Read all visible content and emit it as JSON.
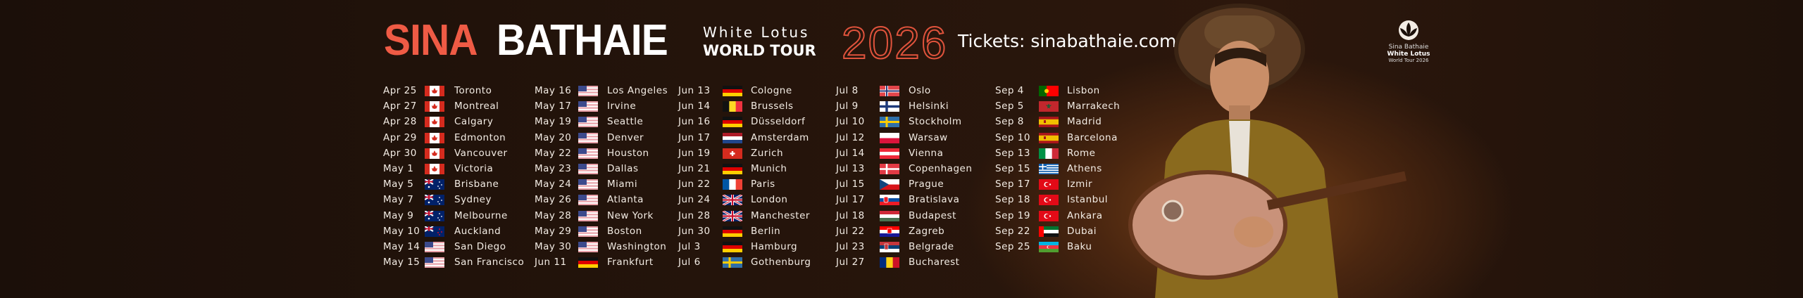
{
  "header": {
    "artist_first": "SINA",
    "artist_last": "BATHAIE",
    "tour_subtitle": "White Lotus",
    "tour_title": "WORLD TOUR",
    "year": "2026",
    "tickets": "Tickets: sinabathaie.com"
  },
  "logo": {
    "line1": "Sina Bathaie",
    "line2": "White Lotus",
    "line3": "World Tour 2026"
  },
  "colors": {
    "accent": "#ef5b45",
    "background": "#1f120b"
  },
  "columns": [
    [
      {
        "date": "Apr 25",
        "flag": "ca",
        "city": "Toronto"
      },
      {
        "date": "Apr 27",
        "flag": "ca",
        "city": "Montreal"
      },
      {
        "date": "Apr 28",
        "flag": "ca",
        "city": "Calgary"
      },
      {
        "date": "Apr 29",
        "flag": "ca",
        "city": "Edmonton"
      },
      {
        "date": "Apr 30",
        "flag": "ca",
        "city": "Vancouver"
      },
      {
        "date": "May 1",
        "flag": "ca",
        "city": "Victoria"
      },
      {
        "date": "May 5",
        "flag": "au",
        "city": "Brisbane"
      },
      {
        "date": "May 7",
        "flag": "au",
        "city": "Sydney"
      },
      {
        "date": "May 9",
        "flag": "au",
        "city": "Melbourne"
      },
      {
        "date": "May 10",
        "flag": "nz",
        "city": "Auckland"
      },
      {
        "date": "May 14",
        "flag": "us",
        "city": "San Diego"
      },
      {
        "date": "May 15",
        "flag": "us",
        "city": "San Francisco"
      }
    ],
    [
      {
        "date": "May 16",
        "flag": "us",
        "city": "Los Angeles"
      },
      {
        "date": "May 17",
        "flag": "us",
        "city": "Irvine"
      },
      {
        "date": "May 19",
        "flag": "us",
        "city": "Seattle"
      },
      {
        "date": "May 20",
        "flag": "us",
        "city": "Denver"
      },
      {
        "date": "May 22",
        "flag": "us",
        "city": "Houston"
      },
      {
        "date": "May 23",
        "flag": "us",
        "city": "Dallas"
      },
      {
        "date": "May 24",
        "flag": "us",
        "city": "Miami"
      },
      {
        "date": "May 26",
        "flag": "us",
        "city": "Atlanta"
      },
      {
        "date": "May 28",
        "flag": "us",
        "city": "New York"
      },
      {
        "date": "May 29",
        "flag": "us",
        "city": "Boston"
      },
      {
        "date": "May 30",
        "flag": "us",
        "city": "Washington"
      },
      {
        "date": "Jun 11",
        "flag": "de",
        "city": "Frankfurt"
      }
    ],
    [
      {
        "date": "Jun 13",
        "flag": "de",
        "city": "Cologne"
      },
      {
        "date": "Jun 14",
        "flag": "be",
        "city": "Brussels"
      },
      {
        "date": "Jun 16",
        "flag": "de",
        "city": "Düsseldorf"
      },
      {
        "date": "Jun 17",
        "flag": "nl",
        "city": "Amsterdam"
      },
      {
        "date": "Jun 19",
        "flag": "ch",
        "city": "Zurich"
      },
      {
        "date": "Jun 21",
        "flag": "de",
        "city": "Munich"
      },
      {
        "date": "Jun 22",
        "flag": "fr",
        "city": "Paris"
      },
      {
        "date": "Jun 24",
        "flag": "gb",
        "city": "London"
      },
      {
        "date": "Jun 28",
        "flag": "gb",
        "city": "Manchester"
      },
      {
        "date": "Jun 30",
        "flag": "de",
        "city": "Berlin"
      },
      {
        "date": "Jul 3",
        "flag": "de",
        "city": "Hamburg"
      },
      {
        "date": "Jul 6",
        "flag": "se",
        "city": "Gothenburg"
      }
    ],
    [
      {
        "date": "Jul 8",
        "flag": "no",
        "city": "Oslo"
      },
      {
        "date": "Jul 9",
        "flag": "fi",
        "city": "Helsinki"
      },
      {
        "date": "Jul 10",
        "flag": "se",
        "city": "Stockholm"
      },
      {
        "date": "Jul 12",
        "flag": "pl",
        "city": "Warsaw"
      },
      {
        "date": "Jul 14",
        "flag": "at",
        "city": "Vienna"
      },
      {
        "date": "Jul 13",
        "flag": "dk",
        "city": "Copenhagen"
      },
      {
        "date": "Jul 15",
        "flag": "cz",
        "city": "Prague"
      },
      {
        "date": "Jul 17",
        "flag": "sk",
        "city": "Bratislava"
      },
      {
        "date": "Jul 18",
        "flag": "hu",
        "city": "Budapest"
      },
      {
        "date": "Jul 22",
        "flag": "hr",
        "city": "Zagreb"
      },
      {
        "date": "Jul 23",
        "flag": "rs",
        "city": "Belgrade"
      },
      {
        "date": "Jul 27",
        "flag": "ro",
        "city": "Bucharest"
      }
    ],
    [
      {
        "date": "Sep 4",
        "flag": "pt",
        "city": "Lisbon"
      },
      {
        "date": "Sep 5",
        "flag": "ma",
        "city": "Marrakech"
      },
      {
        "date": "Sep 8",
        "flag": "es",
        "city": "Madrid"
      },
      {
        "date": "Sep 10",
        "flag": "es",
        "city": "Barcelona"
      },
      {
        "date": "Sep 13",
        "flag": "it",
        "city": "Rome"
      },
      {
        "date": "Sep 15",
        "flag": "gr",
        "city": "Athens"
      },
      {
        "date": "Sep 17",
        "flag": "tr",
        "city": "Izmir"
      },
      {
        "date": "Sep 18",
        "flag": "tr",
        "city": "Istanbul"
      },
      {
        "date": "Sep 19",
        "flag": "tr",
        "city": "Ankara"
      },
      {
        "date": "Sep 22",
        "flag": "ae",
        "city": "Dubai"
      },
      {
        "date": "Sep 25",
        "flag": "az",
        "city": "Baku"
      }
    ]
  ]
}
